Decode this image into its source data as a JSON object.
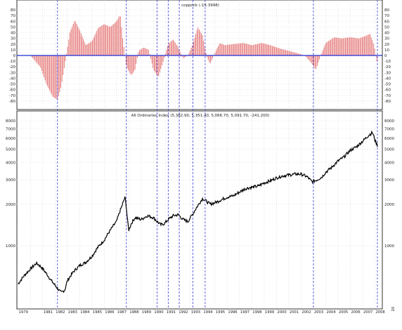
{
  "chart_data": [
    {
      "type": "bar",
      "title": "coppock (-15.3998)",
      "ylim": [
        -90,
        90
      ],
      "yticks": [
        80,
        70,
        60,
        50,
        40,
        30,
        20,
        10,
        0,
        -10,
        -20,
        -30,
        -40,
        -50,
        -60,
        -70,
        -80
      ],
      "ytick_labels": [
        "80",
        "70",
        "60",
        "50",
        "40",
        "30",
        "20",
        "10",
        "0",
        "-10",
        "-20",
        "-30",
        "-40",
        "-50",
        "-60",
        "-70",
        "-80"
      ],
      "zero_line": 0,
      "bar_color": "#e05a5a",
      "zero_line_color": "#1f2fd6",
      "x": [
        1979.0,
        1980.0,
        1980.8,
        1981.3,
        1981.8,
        1982.2,
        1982.5,
        1982.8,
        1983.2,
        1983.6,
        1984.0,
        1984.5,
        1985.0,
        1985.5,
        1986.0,
        1986.5,
        1987.0,
        1987.3,
        1987.5,
        1987.8,
        1988.2,
        1988.5,
        1988.8,
        1989.2,
        1989.6,
        1990.0,
        1990.4,
        1990.8,
        1991.2,
        1991.6,
        1992.0,
        1992.4,
        1992.8,
        1993.2,
        1993.6,
        1994.0,
        1994.3,
        1994.6,
        1995.0,
        1995.4,
        1995.8,
        1996.5,
        1997.3,
        1998.0,
        1998.8,
        1999.5,
        2000.3,
        2001.0,
        2001.7,
        2002.3,
        2002.9,
        2003.2,
        2003.6,
        2004.0,
        2004.7,
        2005.3,
        2006.0,
        2006.7,
        2007.2,
        2007.6,
        2007.9,
        2008.2
      ],
      "values": [
        0,
        0,
        -20,
        -50,
        -72,
        -78,
        -55,
        -15,
        40,
        62,
        45,
        18,
        25,
        48,
        55,
        50,
        60,
        72,
        30,
        -20,
        -35,
        -25,
        8,
        14,
        10,
        -25,
        -38,
        -10,
        20,
        28,
        15,
        -5,
        0,
        20,
        50,
        35,
        0,
        -15,
        5,
        22,
        18,
        20,
        22,
        18,
        22,
        18,
        12,
        8,
        4,
        0,
        -15,
        -25,
        0,
        22,
        32,
        30,
        32,
        30,
        34,
        38,
        20,
        -15
      ]
    },
    {
      "type": "line",
      "title": "All Ordinaries Index (5,382.90, 5,351.40, 5,066.70, 5,091.70, -241.200)",
      "yscale": "log",
      "ylim": [
        350,
        8800
      ],
      "yticks_left": [
        8000,
        7000,
        6000,
        5000,
        4000,
        3000,
        2000,
        1000
      ],
      "yticks_right": [
        8000,
        7000,
        6000,
        5000,
        4000,
        3000,
        2000,
        1000
      ],
      "ytick_labels_left": [
        "8000",
        "7000",
        "6000",
        "5000",
        "4000",
        "3000",
        "2000",
        "1000"
      ],
      "ytick_labels_right": [
        "8000",
        "7000",
        "6000",
        "5000",
        "4000",
        "3000",
        "2000",
        "1000"
      ],
      "line_color": "#000000",
      "x": [
        1979.0,
        1979.5,
        1980.0,
        1980.5,
        1980.9,
        1981.3,
        1981.7,
        1982.0,
        1982.3,
        1982.5,
        1982.8,
        1983.0,
        1983.5,
        1984.0,
        1984.5,
        1985.0,
        1985.5,
        1986.0,
        1986.5,
        1987.0,
        1987.4,
        1987.7,
        1987.9,
        1988.0,
        1988.2,
        1988.5,
        1989.0,
        1989.5,
        1990.0,
        1990.3,
        1990.6,
        1990.9,
        1991.2,
        1991.6,
        1992.0,
        1992.4,
        1992.8,
        1993.2,
        1993.6,
        1994.0,
        1994.3,
        1994.6,
        1995.0,
        1995.5,
        1996.0,
        1996.5,
        1997.0,
        1997.5,
        1998.0,
        1998.5,
        1999.0,
        1999.5,
        2000.0,
        2000.5,
        2001.0,
        2001.5,
        2002.0,
        2002.5,
        2002.9,
        2003.3,
        2003.7,
        2004.0,
        2004.5,
        2005.0,
        2005.5,
        2006.0,
        2006.5,
        2007.0,
        2007.5,
        2007.8,
        2008.0,
        2008.2
      ],
      "values": [
        530,
        610,
        680,
        750,
        700,
        630,
        560,
        520,
        480,
        460,
        480,
        560,
        650,
        720,
        760,
        840,
        980,
        1100,
        1300,
        1500,
        1900,
        2250,
        1500,
        1300,
        1450,
        1600,
        1550,
        1650,
        1600,
        1500,
        1420,
        1450,
        1550,
        1650,
        1680,
        1550,
        1500,
        1700,
        1950,
        2200,
        2100,
        2000,
        2050,
        2150,
        2250,
        2300,
        2450,
        2600,
        2650,
        2700,
        2850,
        2950,
        3100,
        3200,
        3250,
        3300,
        3300,
        3150,
        2900,
        3000,
        3150,
        3400,
        3700,
        4100,
        4400,
        4900,
        5200,
        5700,
        6300,
        6600,
        5800,
        5300
      ]
    }
  ],
  "x_axis": {
    "year_labels": [
      "1979",
      "1981",
      "1982",
      "1983",
      "1984",
      "1985",
      "1986",
      "1987",
      "1988",
      "1989",
      "1990",
      "1991",
      "1992",
      "1993",
      "1994",
      "1995",
      "1996",
      "1997",
      "1998",
      "1999",
      "2000",
      "2001",
      "2002",
      "2003",
      "2004",
      "2005",
      "2006",
      "2007",
      "2008"
    ],
    "year_values": [
      1979,
      1981,
      1982,
      1983,
      1984,
      1985,
      1986,
      1987,
      1988,
      1989,
      1990,
      1991,
      1992,
      1993,
      1994,
      1995,
      1996,
      1997,
      1998,
      1999,
      2000,
      2001,
      2002,
      2003,
      2004,
      2005,
      2006,
      2007,
      2008
    ],
    "range": [
      1978.9,
      2008.6
    ]
  },
  "signal_lines": {
    "color": "#3a3adf",
    "x": [
      1982.2,
      1987.8,
      1990.3,
      1991.2,
      1992.1,
      1993.2,
      1994.2,
      2003.0,
      2008.2
    ]
  },
  "extra_label": "20"
}
